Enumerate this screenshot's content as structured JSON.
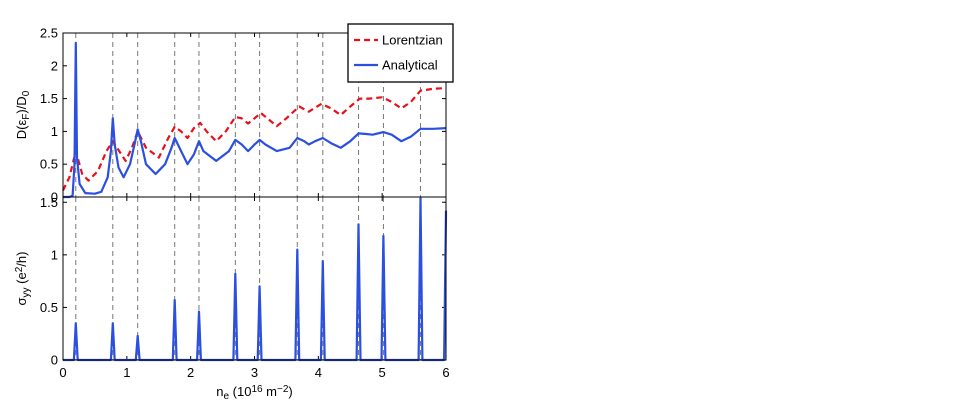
{
  "chart_data": [
    {
      "type": "line",
      "ylabel": [
        {
          "text": "D(ε"
        },
        {
          "text": "F",
          "shift": "sub"
        },
        {
          "text": ")/D"
        },
        {
          "text": "0",
          "shift": "sub"
        }
      ],
      "xlim": [
        0,
        6
      ],
      "ylim": [
        0,
        2.5
      ],
      "yticks": [
        0,
        0.5,
        1,
        1.5,
        2,
        2.5
      ],
      "vlines": [
        0.2,
        0.78,
        1.17,
        1.75,
        2.13,
        2.7,
        3.08,
        3.67,
        4.07,
        4.63,
        5.02,
        5.6
      ],
      "legend": "upper right",
      "series": [
        {
          "name": "Lorentzian",
          "color": "#e8101a",
          "dash": true,
          "x": [
            0,
            0.1,
            0.2,
            0.3,
            0.4,
            0.55,
            0.68,
            0.78,
            0.88,
            0.98,
            1.08,
            1.17,
            1.3,
            1.5,
            1.65,
            1.75,
            1.85,
            1.95,
            2.05,
            2.15,
            2.25,
            2.4,
            2.55,
            2.7,
            2.8,
            2.9,
            3.0,
            3.1,
            3.2,
            3.35,
            3.5,
            3.7,
            3.85,
            4.05,
            4.2,
            4.35,
            4.5,
            4.65,
            4.8,
            5.0,
            5.15,
            5.3,
            5.45,
            5.6,
            5.8,
            6.0
          ],
          "values": [
            0.1,
            0.3,
            0.7,
            0.35,
            0.25,
            0.4,
            0.7,
            0.85,
            0.7,
            0.55,
            0.75,
            1.0,
            0.75,
            0.6,
            0.9,
            1.07,
            1.0,
            0.9,
            1.05,
            1.13,
            1.0,
            0.85,
            1.0,
            1.22,
            1.2,
            1.12,
            1.2,
            1.28,
            1.2,
            1.08,
            1.2,
            1.38,
            1.3,
            1.42,
            1.35,
            1.25,
            1.38,
            1.5,
            1.5,
            1.52,
            1.45,
            1.35,
            1.45,
            1.62,
            1.65,
            1.66
          ]
        },
        {
          "name": "Analytical",
          "color": "#2b4fe0",
          "dash": false,
          "x": [
            0,
            0.1,
            0.15,
            0.18,
            0.2,
            0.22,
            0.26,
            0.35,
            0.5,
            0.6,
            0.7,
            0.75,
            0.78,
            0.81,
            0.87,
            0.95,
            1.05,
            1.12,
            1.17,
            1.22,
            1.3,
            1.45,
            1.6,
            1.7,
            1.75,
            1.8,
            1.95,
            2.05,
            2.13,
            2.2,
            2.4,
            2.6,
            2.7,
            2.8,
            2.9,
            3.0,
            3.08,
            3.17,
            3.35,
            3.55,
            3.67,
            3.78,
            3.85,
            3.95,
            4.07,
            4.2,
            4.35,
            4.5,
            4.63,
            4.75,
            4.85,
            5.02,
            5.15,
            5.3,
            5.45,
            5.6,
            5.8,
            6.0
          ],
          "values": [
            0,
            0,
            0.02,
            0.5,
            2.35,
            0.6,
            0.2,
            0.06,
            0.05,
            0.08,
            0.3,
            0.7,
            1.2,
            0.8,
            0.45,
            0.3,
            0.5,
            0.8,
            1.03,
            0.85,
            0.5,
            0.35,
            0.5,
            0.75,
            0.9,
            0.8,
            0.5,
            0.65,
            0.85,
            0.7,
            0.55,
            0.7,
            0.87,
            0.8,
            0.7,
            0.8,
            0.87,
            0.8,
            0.7,
            0.75,
            0.9,
            0.85,
            0.8,
            0.85,
            0.9,
            0.82,
            0.75,
            0.85,
            0.97,
            0.96,
            0.95,
            0.99,
            0.95,
            0.85,
            0.92,
            1.04,
            1.04,
            1.05
          ]
        }
      ]
    },
    {
      "type": "line",
      "ylabel": [
        {
          "text": "σ"
        },
        {
          "text": "yy",
          "shift": "sub"
        },
        {
          "text": " (e"
        },
        {
          "text": "2",
          "shift": "sup"
        },
        {
          "text": "/h)"
        }
      ],
      "xlabel": [
        {
          "text": "n"
        },
        {
          "text": "e",
          "shift": "sub"
        },
        {
          "text": " (10"
        },
        {
          "text": "16",
          "shift": "sup"
        },
        {
          "text": " m"
        },
        {
          "text": "−2",
          "shift": "sup"
        },
        {
          "text": ")"
        }
      ],
      "xlim": [
        0,
        6
      ],
      "xticks": [
        0,
        1,
        2,
        3,
        4,
        5,
        6
      ],
      "ylim": [
        0,
        1.55
      ],
      "yticks": [
        0,
        0.5,
        1,
        1.5
      ],
      "series": [
        {
          "color": "#2b4fe0",
          "dash": false,
          "x": [
            0,
            0.17,
            0.2,
            0.23,
            0.75,
            0.78,
            0.81,
            1.14,
            1.17,
            1.2,
            1.72,
            1.75,
            1.78,
            2.1,
            2.13,
            2.16,
            2.67,
            2.7,
            2.73,
            3.05,
            3.08,
            3.11,
            3.64,
            3.67,
            3.7,
            4.04,
            4.07,
            4.1,
            4.6,
            4.63,
            4.66,
            4.99,
            5.02,
            5.05,
            5.57,
            5.6,
            5.63,
            5.97,
            6.0
          ],
          "values": [
            0,
            0,
            0.35,
            0,
            0,
            0.35,
            0,
            0,
            0.23,
            0,
            0,
            0.57,
            0,
            0,
            0.46,
            0,
            0,
            0.82,
            0,
            0,
            0.7,
            0,
            0,
            1.05,
            0,
            0,
            0.94,
            0,
            0,
            1.29,
            0,
            0,
            1.18,
            0,
            0,
            1.54,
            0,
            0,
            1.42
          ]
        }
      ]
    }
  ]
}
